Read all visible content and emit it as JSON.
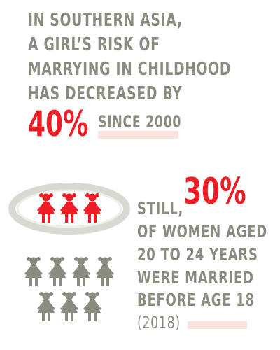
{
  "headline": {
    "line1": "IN SOUTHERN ASIA,",
    "line2": "A GIRL’S RISK OF",
    "line3": "MARRYING IN CHILDHOOD",
    "line4": "HAS DECREASED BY",
    "stat": "40%",
    "suffix": "SINCE 2000"
  },
  "second": {
    "prefix": "STILL,",
    "stat": "30%",
    "line1": "OF WOMEN AGED",
    "line2": "20 TO 24 YEARS",
    "line3": "WERE MARRIED",
    "line4": "BEFORE AGE 18",
    "year": "(2018)"
  },
  "colors": {
    "accent": "#ee1c25",
    "text": "#8b8b80",
    "highlight": "#fbe3dd",
    "ring": "#d6d6cf"
  },
  "icons": {
    "ring": "ring-icon",
    "girl": "girl-figure-icon"
  }
}
